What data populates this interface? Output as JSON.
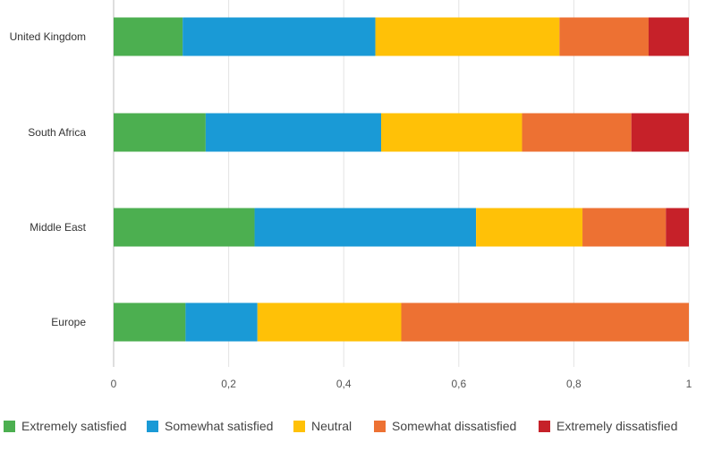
{
  "chart_data": {
    "type": "bar",
    "orientation": "horizontal",
    "stacked": true,
    "categories": [
      "United Kingdom",
      "South Africa",
      "Middle East",
      "Europe"
    ],
    "series": [
      {
        "name": "Extremely satisfied",
        "color": "#4caf50",
        "values": [
          0.12,
          0.16,
          0.245,
          0.125
        ]
      },
      {
        "name": "Somewhat satisfied",
        "color": "#1a9ad6",
        "values": [
          0.335,
          0.305,
          0.385,
          0.125
        ]
      },
      {
        "name": "Neutral",
        "color": "#ffc107",
        "values": [
          0.32,
          0.245,
          0.185,
          0.25
        ]
      },
      {
        "name": "Somewhat dissatisfied",
        "color": "#ed7133",
        "values": [
          0.155,
          0.19,
          0.145,
          0.5
        ]
      },
      {
        "name": "Extremely dissatisfied",
        "color": "#c62129",
        "values": [
          0.07,
          0.1,
          0.04,
          0.0
        ]
      }
    ],
    "xlim": [
      0,
      1
    ],
    "xticks": [
      "0",
      "0,2",
      "0,4",
      "0,6",
      "0,8",
      "1"
    ],
    "grid": true,
    "legend_position": "bottom"
  }
}
